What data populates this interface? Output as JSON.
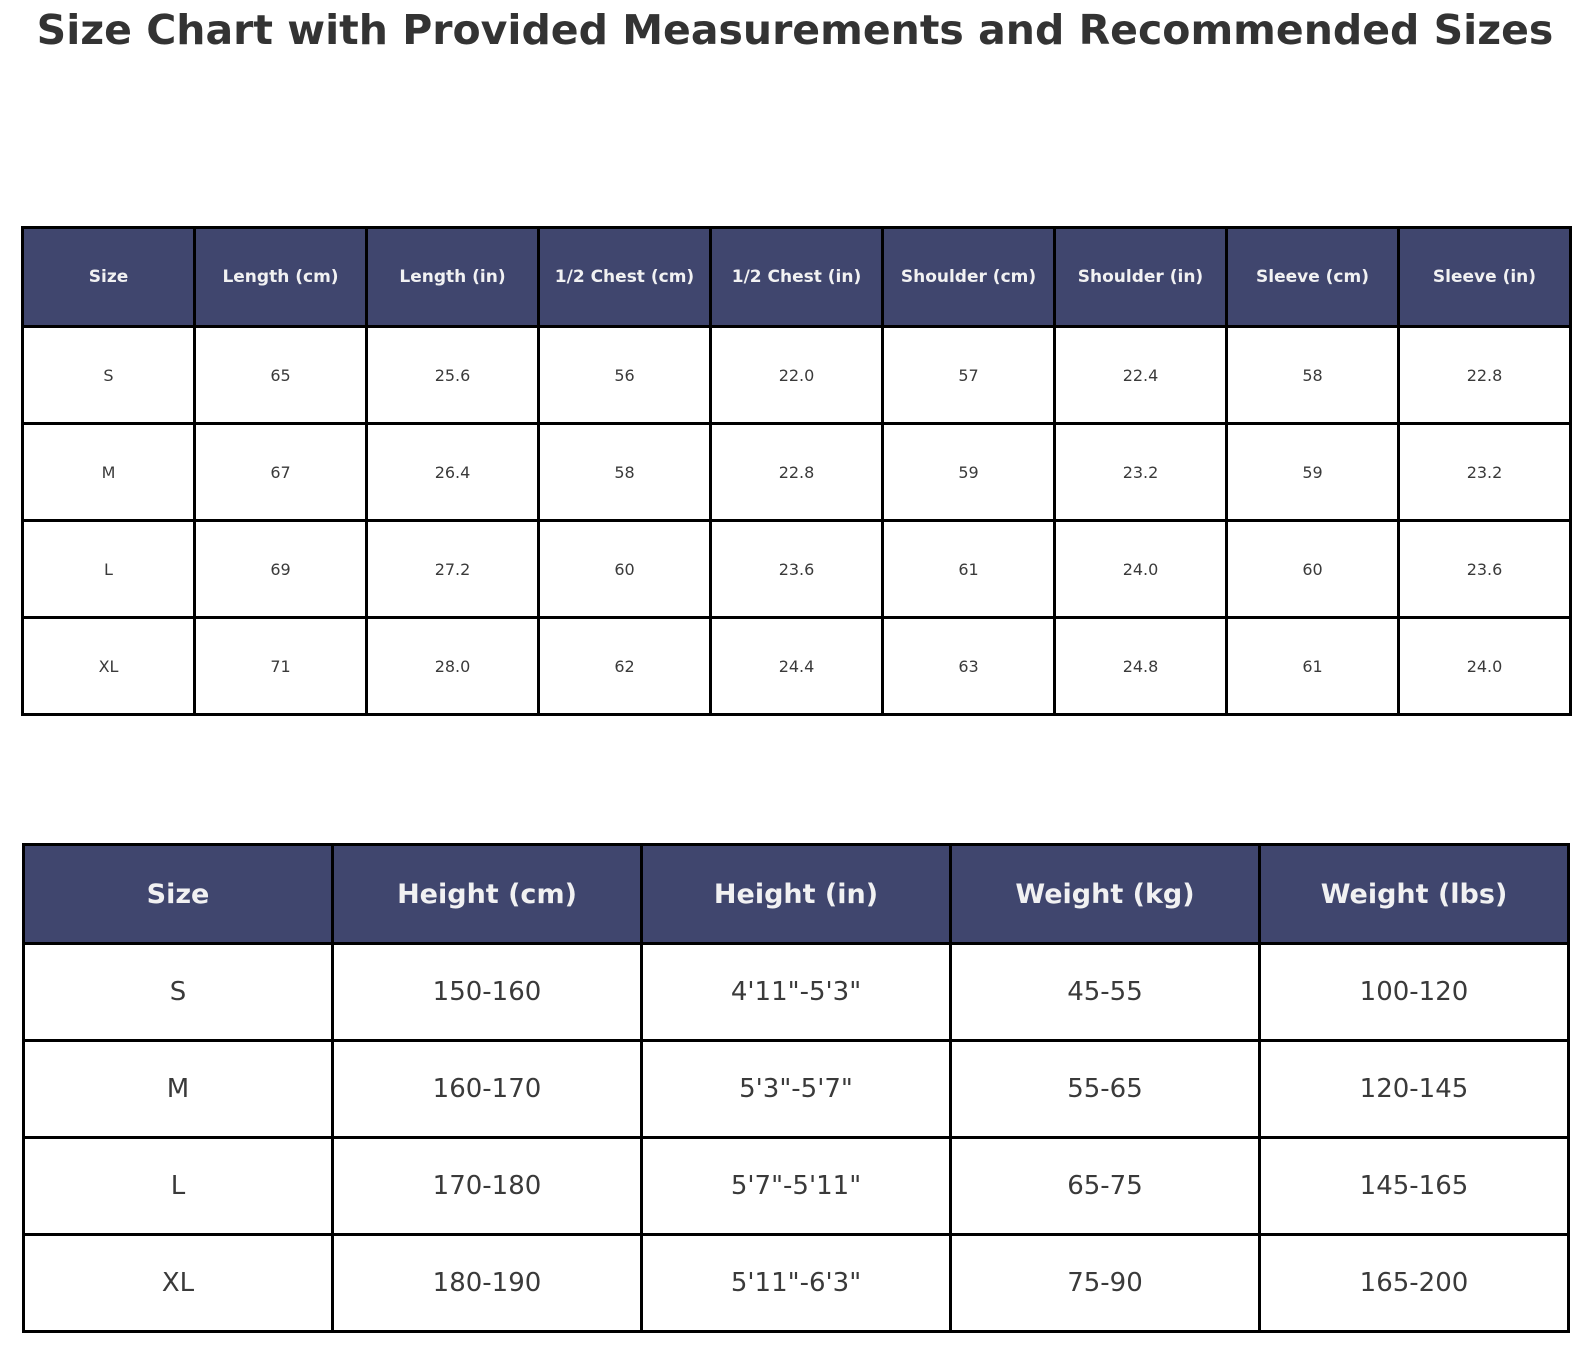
{
  "title": "Size Chart with Provided Measurements and Recommended Sizes",
  "colors": {
    "header_bg": "#40466e",
    "header_text": "#f1f1f2",
    "cell_text": "#3a3a3a",
    "border": "#000000",
    "background": "#ffffff",
    "title_text": "#333333"
  },
  "chart_data": [
    {
      "type": "table",
      "name": "provided_measurements",
      "columns": [
        "Size",
        "Length (cm)",
        "Length (in)",
        "1/2 Chest (cm)",
        "1/2 Chest (in)",
        "Shoulder (cm)",
        "Shoulder (in)",
        "Sleeve (cm)",
        "Sleeve (in)"
      ],
      "rows": [
        [
          "S",
          "65",
          "25.6",
          "56",
          "22.0",
          "57",
          "22.4",
          "58",
          "22.8"
        ],
        [
          "M",
          "67",
          "26.4",
          "58",
          "22.8",
          "59",
          "23.2",
          "59",
          "23.2"
        ],
        [
          "L",
          "69",
          "27.2",
          "60",
          "23.6",
          "61",
          "24.0",
          "60",
          "23.6"
        ],
        [
          "XL",
          "71",
          "28.0",
          "62",
          "24.4",
          "63",
          "24.8",
          "61",
          "24.0"
        ]
      ]
    },
    {
      "type": "table",
      "name": "recommended_sizes",
      "columns": [
        "Size",
        "Height (cm)",
        "Height (in)",
        "Weight (kg)",
        "Weight (lbs)"
      ],
      "rows": [
        [
          "S",
          "150-160",
          "4'11\"-5'3\"",
          "45-55",
          "100-120"
        ],
        [
          "M",
          "160-170",
          "5'3\"-5'7\"",
          "55-65",
          "120-145"
        ],
        [
          "L",
          "170-180",
          "5'7\"-5'11\"",
          "65-75",
          "145-165"
        ],
        [
          "XL",
          "180-190",
          "5'11\"-6'3\"",
          "75-90",
          "165-200"
        ]
      ]
    }
  ]
}
